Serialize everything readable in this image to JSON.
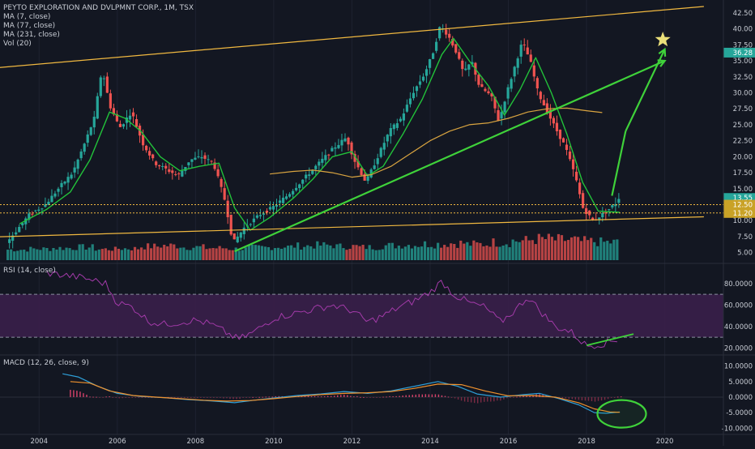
{
  "header": {
    "title": "PEYTO EXPLORATION AND DVLPMNT CORP., 1M, TSX",
    "indicators": [
      "MA (7, close)",
      "MA (77, close)",
      "MA (231, close)",
      "Vol (20)"
    ]
  },
  "colors": {
    "background": "#131722",
    "up": "#26a69a",
    "down": "#ef5350",
    "ma7": "#22c23a",
    "ma77": "#d9a440",
    "ma231": "#d9a440",
    "trend_green": "#3fd23a",
    "channel_orange": "#f0b840",
    "rsi_line": "#a23aa8",
    "rsi_band": "#3a1f4a",
    "macd_line": "#2e9fd8",
    "signal_line": "#f0922e",
    "hist_pos": "#d7426a",
    "ellipse": "#3fd23a",
    "star": "#ebe07a",
    "axis_text": "#c8ccd4",
    "grid": "#1e2230"
  },
  "chart_data": [
    {
      "type": "candlestick",
      "symbol": "PEYTO EXPLORATION AND DVLPMNT CORP.",
      "interval": "1M",
      "exchange": "TSX",
      "x_ticks": [
        "2004",
        "2006",
        "2008",
        "2010",
        "2012",
        "2014",
        "2016",
        "2018",
        "2020"
      ],
      "y_ticks": [
        "42.50",
        "40.00",
        "37.50",
        "35.00",
        "32.50",
        "30.00",
        "27.50",
        "25.00",
        "22.50",
        "20.00",
        "17.50",
        "15.00",
        "12.50",
        "10.00",
        "7.50",
        "5.00"
      ],
      "ylim": [
        4.2,
        43.5
      ],
      "price_tags": [
        {
          "label": "36.28",
          "value": 36.28,
          "color": "#26a69a"
        },
        {
          "label": "13.55",
          "value": 13.55,
          "color": "#26a69a"
        },
        {
          "label": "12.50",
          "value": 12.5,
          "color": "#c9a227"
        },
        {
          "label": "11.20",
          "value": 11.2,
          "color": "#c9a227"
        }
      ],
      "price_path": [
        [
          2003.2,
          6.5
        ],
        [
          2003.8,
          11.0
        ],
        [
          2004.2,
          12.5
        ],
        [
          2004.6,
          15.5
        ],
        [
          2004.9,
          17.5
        ],
        [
          2005.2,
          22.0
        ],
        [
          2005.45,
          26.0
        ],
        [
          2005.65,
          33.8
        ],
        [
          2005.85,
          28.0
        ],
        [
          2006.1,
          24.5
        ],
        [
          2006.4,
          27.0
        ],
        [
          2006.7,
          22.0
        ],
        [
          2007.0,
          19.0
        ],
        [
          2007.3,
          18.0
        ],
        [
          2007.6,
          17.0
        ],
        [
          2007.9,
          19.5
        ],
        [
          2008.2,
          20.0
        ],
        [
          2008.5,
          19.0
        ],
        [
          2008.8,
          13.0
        ],
        [
          2009.0,
          6.5
        ],
        [
          2009.3,
          9.0
        ],
        [
          2009.7,
          11.0
        ],
        [
          2010.0,
          12.0
        ],
        [
          2010.4,
          14.0
        ],
        [
          2010.8,
          16.5
        ],
        [
          2011.2,
          19.0
        ],
        [
          2011.6,
          21.5
        ],
        [
          2011.9,
          23.0
        ],
        [
          2012.1,
          19.5
        ],
        [
          2012.4,
          16.0
        ],
        [
          2012.7,
          20.0
        ],
        [
          2013.0,
          24.0
        ],
        [
          2013.3,
          26.0
        ],
        [
          2013.6,
          30.0
        ],
        [
          2013.9,
          33.0
        ],
        [
          2014.1,
          36.0
        ],
        [
          2014.3,
          40.5
        ],
        [
          2014.5,
          39.0
        ],
        [
          2014.7,
          36.5
        ],
        [
          2014.9,
          33.0
        ],
        [
          2015.1,
          35.0
        ],
        [
          2015.3,
          31.0
        ],
        [
          2015.6,
          29.5
        ],
        [
          2015.8,
          25.5
        ],
        [
          2016.0,
          30.0
        ],
        [
          2016.2,
          34.0
        ],
        [
          2016.4,
          38.0
        ],
        [
          2016.6,
          35.0
        ],
        [
          2016.8,
          30.0
        ],
        [
          2017.0,
          27.5
        ],
        [
          2017.2,
          25.0
        ],
        [
          2017.5,
          21.5
        ],
        [
          2017.75,
          17.0
        ],
        [
          2017.95,
          12.0
        ],
        [
          2018.2,
          10.0
        ],
        [
          2018.5,
          11.2
        ],
        [
          2018.8,
          12.8
        ],
        [
          2018.85,
          13.55
        ]
      ],
      "moving_averages": [
        {
          "name": "MA (7, close)",
          "points": [
            [
              2003.5,
              9.5
            ],
            [
              2004.2,
              11.8
            ],
            [
              2004.8,
              14.5
            ],
            [
              2005.3,
              19.5
            ],
            [
              2005.8,
              27.0
            ],
            [
              2006.2,
              26.0
            ],
            [
              2006.6,
              24.0
            ],
            [
              2007.1,
              20.0
            ],
            [
              2007.6,
              17.8
            ],
            [
              2008.1,
              18.5
            ],
            [
              2008.6,
              19.0
            ],
            [
              2009.0,
              12.0
            ],
            [
              2009.4,
              8.5
            ],
            [
              2009.9,
              10.5
            ],
            [
              2010.5,
              13.5
            ],
            [
              2011.0,
              16.5
            ],
            [
              2011.5,
              20.0
            ],
            [
              2012.0,
              20.8
            ],
            [
              2012.4,
              17.0
            ],
            [
              2012.8,
              18.5
            ],
            [
              2013.3,
              23.5
            ],
            [
              2013.8,
              29.0
            ],
            [
              2014.3,
              36.0
            ],
            [
              2014.6,
              38.5
            ],
            [
              2015.0,
              35.0
            ],
            [
              2015.5,
              31.0
            ],
            [
              2015.9,
              26.5
            ],
            [
              2016.3,
              30.5
            ],
            [
              2016.7,
              35.5
            ],
            [
              2017.1,
              30.0
            ],
            [
              2017.5,
              23.5
            ],
            [
              2017.9,
              16.0
            ],
            [
              2018.3,
              11.5
            ],
            [
              2018.85,
              11.3
            ]
          ]
        },
        {
          "name": "MA (77, close)",
          "points": [
            [
              2009.9,
              17.3
            ],
            [
              2010.5,
              17.7
            ],
            [
              2011.0,
              17.9
            ],
            [
              2011.5,
              17.5
            ],
            [
              2012.0,
              16.8
            ],
            [
              2012.5,
              17.2
            ],
            [
              2013.0,
              18.5
            ],
            [
              2013.5,
              20.5
            ],
            [
              2014.0,
              22.5
            ],
            [
              2014.5,
              24.0
            ],
            [
              2015.0,
              25.0
            ],
            [
              2015.5,
              25.3
            ],
            [
              2016.0,
              26.0
            ],
            [
              2016.5,
              27.0
            ],
            [
              2017.0,
              27.5
            ],
            [
              2017.5,
              27.6
            ],
            [
              2018.0,
              27.2
            ],
            [
              2018.4,
              26.9
            ]
          ]
        }
      ],
      "volume": {
        "levels": [
          0.35,
          0.4,
          0.45,
          0.5,
          0.38,
          0.42,
          0.55,
          0.6,
          0.5,
          0.45,
          0.4,
          0.48,
          0.52,
          0.58,
          0.62,
          0.55,
          0.5,
          0.6,
          0.65,
          0.7,
          0.75,
          0.68,
          0.8,
          0.9,
          1.0,
          0.95,
          0.85,
          0.8
        ]
      },
      "annotations": {
        "green_trendlines": [
          [
            [
              2009.0,
              5.2
            ],
            [
              2020.0,
              35.0
            ]
          ],
          [
            [
              2018.65,
              13.9
            ],
            [
              2019.0,
              24.0
            ]
          ],
          [
            [
              2019.0,
              24.0
            ],
            [
              2020.0,
              36.8
            ]
          ]
        ],
        "channel_lines": [
          [
            [
              2002.5,
              33.7
            ],
            [
              2021.0,
              43.5
            ]
          ],
          [
            [
              2002.5,
              7.4
            ],
            [
              2021.0,
              10.6
            ]
          ]
        ],
        "horizontal_lines": [
          12.5,
          11.2
        ],
        "star": [
          2019.95,
          38.3
        ]
      }
    },
    {
      "type": "line",
      "title": "RSI (14, close)",
      "y_ticks": [
        "80.0000",
        "60.0000",
        "40.0000",
        "20.0000"
      ],
      "ylim": [
        15,
        95
      ],
      "band": [
        30,
        70
      ],
      "series": [
        {
          "name": "RSI (14, close)",
          "points": [
            [
              2004.2,
              90
            ],
            [
              2004.6,
              88
            ],
            [
              2005.0,
              86
            ],
            [
              2005.4,
              83
            ],
            [
              2005.7,
              80
            ],
            [
              2006.0,
              62
            ],
            [
              2006.4,
              58
            ],
            [
              2006.8,
              45
            ],
            [
              2007.2,
              42
            ],
            [
              2007.6,
              44
            ],
            [
              2008.0,
              46
            ],
            [
              2008.4,
              42
            ],
            [
              2008.8,
              34
            ],
            [
              2009.1,
              28
            ],
            [
              2009.5,
              35
            ],
            [
              2010.0,
              48
            ],
            [
              2010.5,
              52
            ],
            [
              2011.0,
              56
            ],
            [
              2011.5,
              60
            ],
            [
              2012.0,
              55
            ],
            [
              2012.4,
              44
            ],
            [
              2012.8,
              50
            ],
            [
              2013.2,
              58
            ],
            [
              2013.6,
              64
            ],
            [
              2014.0,
              72
            ],
            [
              2014.3,
              82
            ],
            [
              2014.6,
              70
            ],
            [
              2015.0,
              62
            ],
            [
              2015.4,
              58
            ],
            [
              2015.8,
              44
            ],
            [
              2016.2,
              56
            ],
            [
              2016.5,
              68
            ],
            [
              2016.8,
              55
            ],
            [
              2017.2,
              40
            ],
            [
              2017.6,
              35
            ],
            [
              2018.0,
              22
            ],
            [
              2018.4,
              24
            ],
            [
              2018.8,
              28
            ]
          ]
        }
      ],
      "trendline": [
        [
          2018.0,
          22.5
        ],
        [
          2019.2,
          33
        ]
      ]
    },
    {
      "type": "line",
      "title": "MACD (12, 26, close, 9)",
      "y_ticks": [
        "10.0000",
        "5.0000",
        "0.0000",
        "-5.0000",
        "-10.0000"
      ],
      "ylim": [
        -11.5,
        12
      ],
      "series": [
        {
          "name": "MACD",
          "points": [
            [
              2004.6,
              7.5
            ],
            [
              2005.0,
              6.5
            ],
            [
              2005.5,
              3.5
            ],
            [
              2006.0,
              1.2
            ],
            [
              2006.6,
              0.2
            ],
            [
              2007.2,
              -0.2
            ],
            [
              2007.8,
              -0.8
            ],
            [
              2008.4,
              -1.2
            ],
            [
              2009.0,
              -1.8
            ],
            [
              2009.5,
              -1.0
            ],
            [
              2010.0,
              -0.3
            ],
            [
              2010.6,
              0.5
            ],
            [
              2011.2,
              1.0
            ],
            [
              2011.8,
              1.8
            ],
            [
              2012.4,
              1.2
            ],
            [
              2013.0,
              2.0
            ],
            [
              2013.6,
              3.5
            ],
            [
              2014.2,
              5.0
            ],
            [
              2014.7,
              3.5
            ],
            [
              2015.2,
              1.0
            ],
            [
              2015.8,
              0.0
            ],
            [
              2016.4,
              0.8
            ],
            [
              2016.8,
              1.2
            ],
            [
              2017.3,
              -0.5
            ],
            [
              2017.8,
              -2.5
            ],
            [
              2018.2,
              -5.0
            ],
            [
              2018.5,
              -5.2
            ],
            [
              2018.85,
              -4.8
            ]
          ]
        },
        {
          "name": "Signal",
          "points": [
            [
              2004.8,
              5.0
            ],
            [
              2005.3,
              4.5
            ],
            [
              2005.8,
              2.0
            ],
            [
              2006.4,
              0.5
            ],
            [
              2007.0,
              0.0
            ],
            [
              2007.6,
              -0.5
            ],
            [
              2008.2,
              -1.0
            ],
            [
              2008.8,
              -1.3
            ],
            [
              2009.4,
              -1.1
            ],
            [
              2010.0,
              -0.5
            ],
            [
              2010.6,
              0.2
            ],
            [
              2011.2,
              0.8
            ],
            [
              2011.8,
              1.2
            ],
            [
              2012.4,
              1.4
            ],
            [
              2013.0,
              1.8
            ],
            [
              2013.6,
              2.8
            ],
            [
              2014.2,
              4.2
            ],
            [
              2014.8,
              4.0
            ],
            [
              2015.4,
              2.0
            ],
            [
              2016.0,
              0.4
            ],
            [
              2016.6,
              0.5
            ],
            [
              2017.2,
              0.0
            ],
            [
              2017.8,
              -1.8
            ],
            [
              2018.2,
              -3.8
            ],
            [
              2018.6,
              -4.8
            ],
            [
              2018.85,
              -4.9
            ]
          ]
        }
      ],
      "histogram_x": [
        2004.8,
        2018.9
      ],
      "ellipse_center": [
        2018.9,
        -5.4
      ]
    }
  ]
}
